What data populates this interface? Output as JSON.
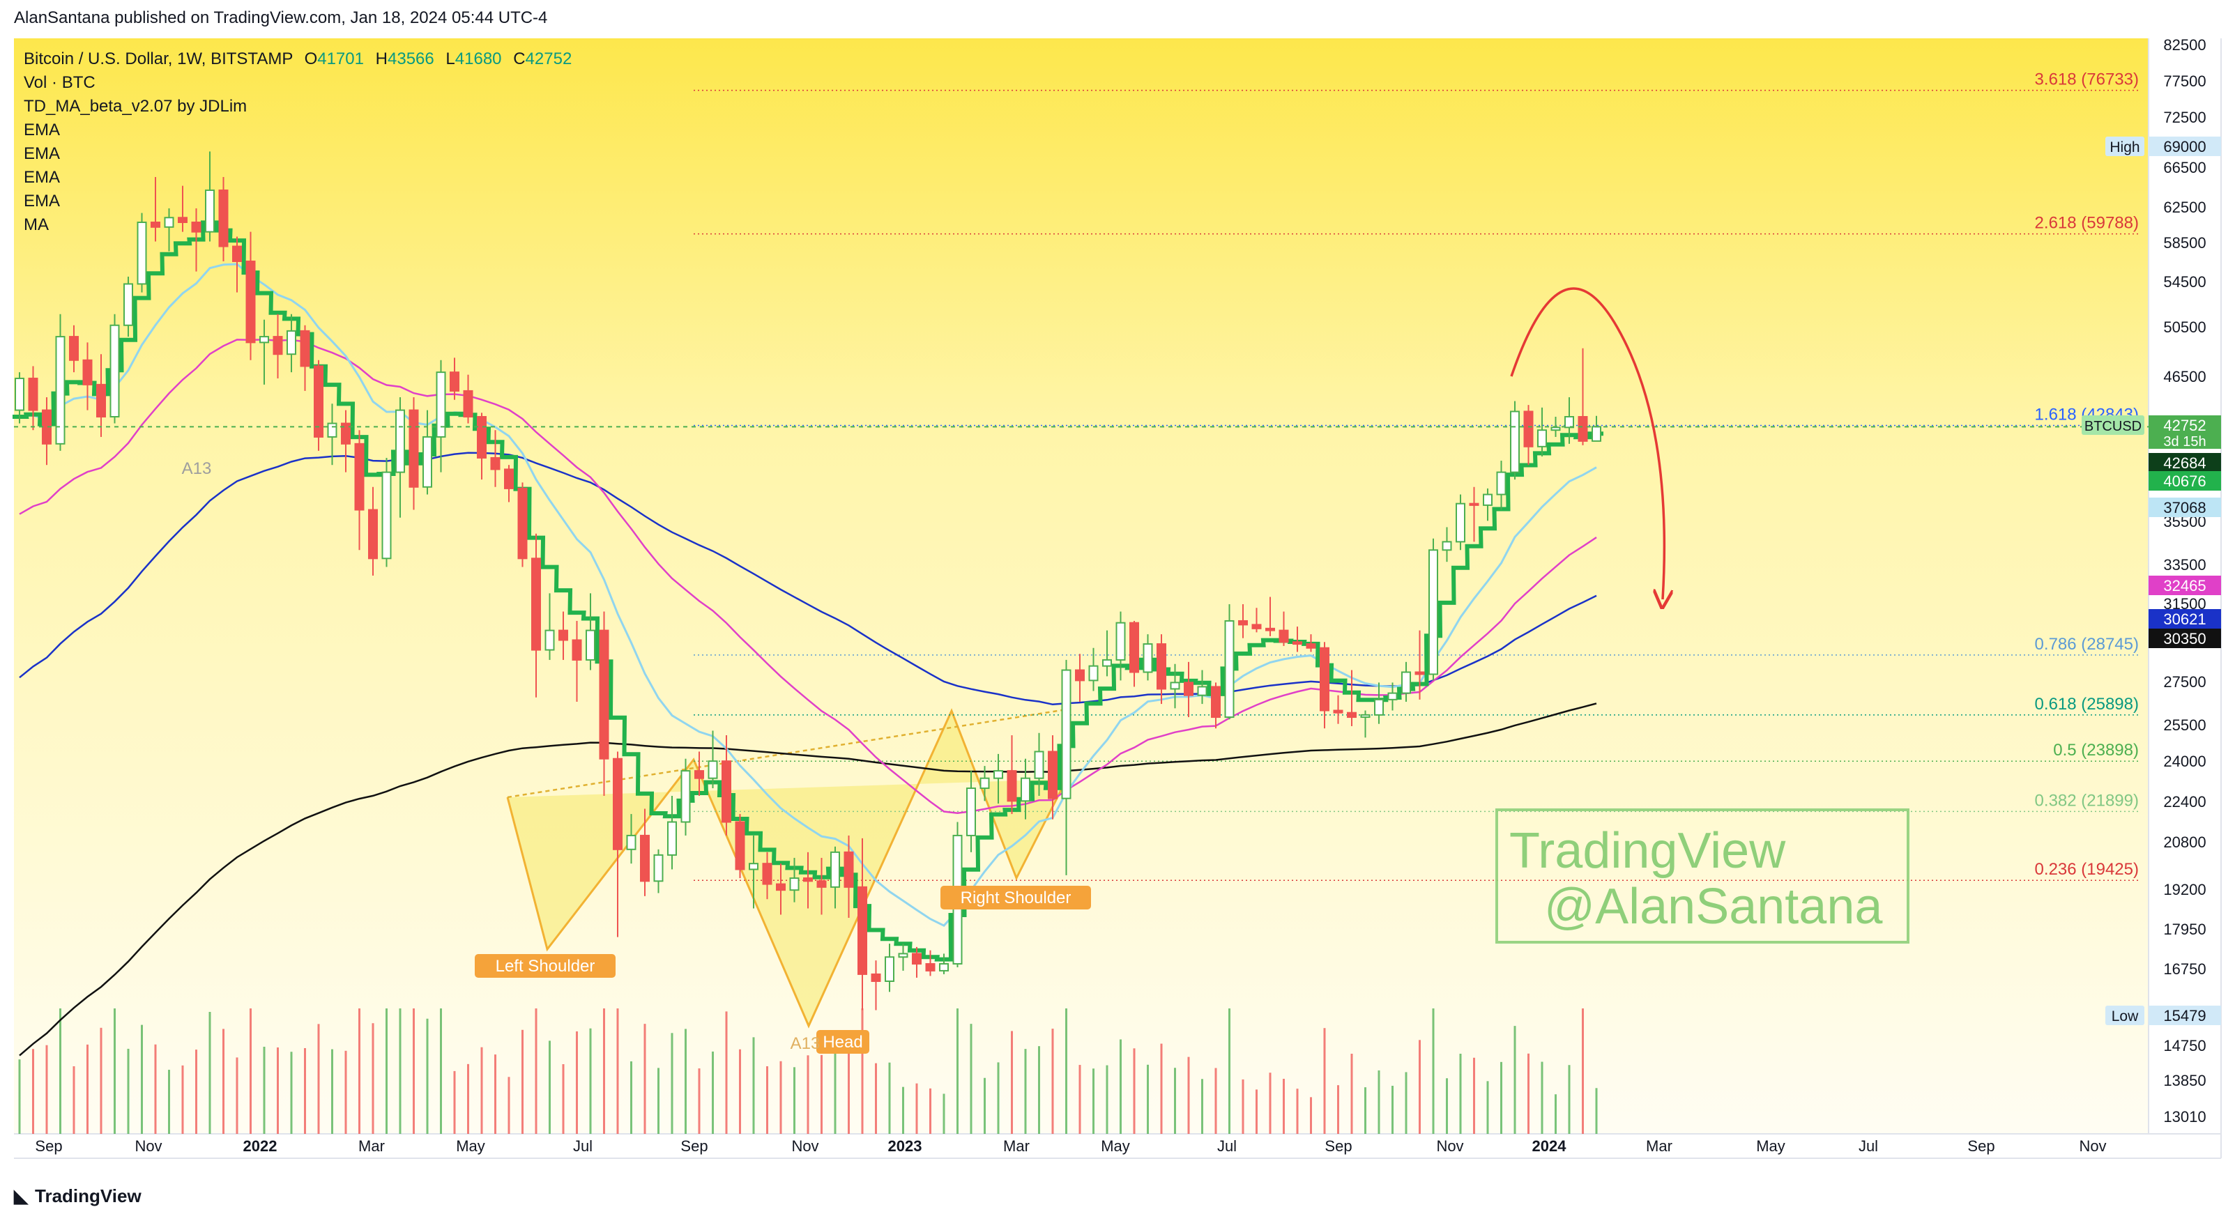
{
  "header": {
    "publisher": "AlanSantana published on TradingView.com, Jan 18, 2024 05:44 UTC-4"
  },
  "legend": {
    "symbol": "Bitcoin / U.S. Dollar, 1W, BITSTAMP",
    "o_label": "O",
    "o": "41701",
    "h_label": "H",
    "h": "43566",
    "l_label": "L",
    "l": "41680",
    "c_label": "C",
    "c": "42752",
    "lines": [
      "Vol · BTC",
      "TD_MA_beta_v2.07 by JDLim",
      "EMA",
      "EMA",
      "EMA",
      "EMA",
      "MA"
    ]
  },
  "footer": {
    "brand": "TradingView"
  },
  "watermark": {
    "line1": "TradingView",
    "line2": "@AlanSantana"
  },
  "colors": {
    "up": "#4caf50",
    "down": "#ef5350",
    "trend": "#22b24c",
    "ema_light": "#90d5ef",
    "ema_pink": "#e040c8",
    "ema_blue": "#1a32c8",
    "ma_black": "#111111",
    "fib": "#d9a900",
    "pattern": "#f5e96a",
    "label_orange": "#f5a33a"
  },
  "chart_data": {
    "type": "candlestick",
    "timeframe": "1W",
    "y_scale": "log",
    "ylim": [
      12500,
      84000
    ],
    "x_labels": [
      "Sep",
      "Nov",
      "2022",
      "Mar",
      "May",
      "Jul",
      "Sep",
      "Nov",
      "2023",
      "Mar",
      "May",
      "Jul",
      "Sep",
      "Nov",
      "2024",
      "Mar",
      "May",
      "Jul",
      "Sep",
      "Nov"
    ],
    "y_ticks": [
      "82500",
      "77500",
      "72500",
      "69000",
      "66500",
      "62500",
      "58500",
      "54500",
      "50500",
      "46500",
      "42752",
      "35500",
      "33500",
      "31500",
      "27500",
      "25500",
      "24000",
      "22400",
      "20800",
      "19200",
      "17950",
      "16750",
      "14750",
      "13850",
      "13010"
    ],
    "price_tags": [
      {
        "text": "42752",
        "sub": "3d 15h",
        "bg": "#4caf50"
      },
      {
        "text": "42684",
        "bg": "#0d3f1a"
      },
      {
        "text": "40676",
        "bg": "#22b24c"
      },
      {
        "text": "37068",
        "bg": "#bde5f5"
      },
      {
        "text": "32465",
        "bg": "#e040c8"
      },
      {
        "text": "30621",
        "bg": "#1a32c8"
      },
      {
        "text": "30350",
        "bg": "#111111"
      }
    ],
    "high_marker": {
      "label": "High",
      "value": "69000"
    },
    "low_marker": {
      "label": "Low",
      "value": "15479"
    },
    "symbol_tag": "BTCUSD",
    "fib_levels": [
      {
        "label": "3.618 (76733)",
        "value": 76733,
        "color": "#d9383a"
      },
      {
        "label": "2.618 (59788)",
        "value": 59788,
        "color": "#d9383a"
      },
      {
        "label": "1.618 (42843)",
        "value": 42843,
        "color": "#2962ff"
      },
      {
        "label": "0.786 (28745)",
        "value": 28745,
        "color": "#5b9bd5"
      },
      {
        "label": "0.618 (25898)",
        "value": 25898,
        "color": "#089981"
      },
      {
        "label": "0.5 (23898)",
        "value": 23898,
        "color": "#4caf50"
      },
      {
        "label": "0.382 (21899)",
        "value": 21899,
        "color": "#81c784"
      },
      {
        "label": "0.236 (19425)",
        "value": 19425,
        "color": "#d9383a"
      }
    ],
    "annotations": [
      "Left Shoulder",
      "Head",
      "Right Shoulder",
      "A13",
      "A13"
    ],
    "candles": [
      [
        44000,
        47000,
        43000,
        46500
      ],
      [
        46500,
        47500,
        42500,
        44000
      ],
      [
        44000,
        45000,
        40000,
        41500
      ],
      [
        41500,
        52000,
        41000,
        50000
      ],
      [
        50000,
        51000,
        47000,
        48000
      ],
      [
        48000,
        49500,
        44000,
        46000
      ],
      [
        46000,
        48500,
        42000,
        43500
      ],
      [
        43500,
        52000,
        43000,
        51000
      ],
      [
        51000,
        55500,
        50000,
        54800
      ],
      [
        54800,
        62000,
        54000,
        61000
      ],
      [
        61000,
        66000,
        59000,
        60500
      ],
      [
        60500,
        62500,
        58000,
        61500
      ],
      [
        61500,
        65000,
        60000,
        61000
      ],
      [
        61000,
        62500,
        56000,
        60000
      ],
      [
        60000,
        69000,
        59000,
        64500
      ],
      [
        64500,
        66000,
        57000,
        58500
      ],
      [
        58500,
        59500,
        54000,
        57000
      ],
      [
        57000,
        60000,
        48000,
        49500
      ],
      [
        49500,
        51500,
        46000,
        50000
      ],
      [
        50000,
        52000,
        46500,
        48500
      ],
      [
        48500,
        52000,
        47000,
        50500
      ],
      [
        50500,
        51000,
        45500,
        47500
      ],
      [
        47500,
        48000,
        41000,
        42000
      ],
      [
        42000,
        44500,
        40000,
        43000
      ],
      [
        43000,
        44000,
        39500,
        41500
      ],
      [
        41500,
        42500,
        34500,
        37000
      ],
      [
        37000,
        38500,
        33000,
        34000
      ],
      [
        34000,
        40500,
        33500,
        39500
      ],
      [
        39500,
        45000,
        36500,
        44000
      ],
      [
        44000,
        45000,
        37000,
        38500
      ],
      [
        38500,
        44000,
        38000,
        42000
      ],
      [
        42000,
        48000,
        39500,
        47000
      ],
      [
        47000,
        48200,
        44800,
        45500
      ],
      [
        45500,
        46800,
        43000,
        43500
      ],
      [
        43500,
        43800,
        39000,
        40500
      ],
      [
        40500,
        42500,
        38500,
        39700
      ],
      [
        39700,
        40000,
        37500,
        38400
      ],
      [
        38400,
        38800,
        33500,
        34000
      ],
      [
        34000,
        35500,
        26700,
        29000
      ],
      [
        29000,
        32000,
        28500,
        30000
      ],
      [
        30000,
        31000,
        28500,
        29500
      ],
      [
        29500,
        30500,
        26500,
        28500
      ],
      [
        28500,
        32000,
        28000,
        30000
      ],
      [
        30000,
        31000,
        22500,
        24000
      ],
      [
        24000,
        24300,
        17600,
        20500
      ],
      [
        20500,
        21800,
        20000,
        21000
      ],
      [
        21000,
        22000,
        18900,
        19400
      ],
      [
        19400,
        20500,
        19000,
        20300
      ],
      [
        20300,
        22500,
        19800,
        21500
      ],
      [
        21500,
        24000,
        21000,
        23500
      ],
      [
        23500,
        24300,
        22500,
        23200
      ],
      [
        23200,
        25200,
        22800,
        23900
      ],
      [
        23900,
        25000,
        21000,
        21500
      ],
      [
        21500,
        21800,
        19500,
        19800
      ],
      [
        19800,
        21000,
        18500,
        20000
      ],
      [
        20000,
        20400,
        18800,
        19300
      ],
      [
        19300,
        20000,
        18300,
        19100
      ],
      [
        19100,
        20200,
        18700,
        19500
      ],
      [
        19500,
        20400,
        18500,
        19400
      ],
      [
        19400,
        20200,
        18300,
        19200
      ],
      [
        19200,
        20600,
        18500,
        20400
      ],
      [
        20400,
        21000,
        18200,
        19200
      ],
      [
        19200,
        20900,
        15500,
        16500
      ],
      [
        16500,
        16900,
        15500,
        16300
      ],
      [
        16300,
        17400,
        16000,
        17000
      ],
      [
        17000,
        17400,
        16600,
        17100
      ],
      [
        17100,
        17300,
        16400,
        16800
      ],
      [
        16800,
        17200,
        16450,
        16600
      ],
      [
        16600,
        17100,
        16500,
        16800
      ],
      [
        16800,
        21500,
        16700,
        21000
      ],
      [
        21000,
        23500,
        20400,
        22800
      ],
      [
        22800,
        23700,
        22300,
        23200
      ],
      [
        23200,
        24200,
        22200,
        23500
      ],
      [
        23500,
        25000,
        21800,
        22300
      ],
      [
        22300,
        24000,
        21600,
        23200
      ],
      [
        23200,
        25100,
        22500,
        24300
      ],
      [
        24300,
        25000,
        21600,
        22400
      ],
      [
        22400,
        28500,
        19600,
        28000
      ],
      [
        28000,
        28800,
        26500,
        27500
      ],
      [
        27500,
        29100,
        27000,
        28200
      ],
      [
        28200,
        30000,
        27700,
        28500
      ],
      [
        28500,
        31000,
        27500,
        30400
      ],
      [
        30400,
        30500,
        27200,
        27900
      ],
      [
        27900,
        29800,
        27500,
        29300
      ],
      [
        29300,
        29800,
        26400,
        27100
      ],
      [
        27100,
        28300,
        26200,
        27400
      ],
      [
        27400,
        28400,
        25800,
        26800
      ],
      [
        26800,
        28000,
        26400,
        27200
      ],
      [
        27200,
        27400,
        25300,
        25800
      ],
      [
        25800,
        31400,
        25700,
        30500
      ],
      [
        30500,
        31400,
        29600,
        30300
      ],
      [
        30300,
        31200,
        29900,
        30100
      ],
      [
        30100,
        31800,
        29700,
        30000
      ],
      [
        30000,
        31000,
        29200,
        29400
      ],
      [
        29400,
        30200,
        28900,
        29300
      ],
      [
        29300,
        29800,
        28900,
        29100
      ],
      [
        29100,
        29400,
        25300,
        26100
      ],
      [
        26100,
        26800,
        25500,
        26000
      ],
      [
        26000,
        28000,
        25400,
        25800
      ],
      [
        25800,
        26100,
        24900,
        25900
      ],
      [
        25900,
        27400,
        25500,
        26600
      ],
      [
        26600,
        27400,
        26100,
        26900
      ],
      [
        26900,
        28400,
        26500,
        27900
      ],
      [
        27900,
        30000,
        26600,
        27800
      ],
      [
        27800,
        35200,
        27500,
        34500
      ],
      [
        34500,
        35900,
        33800,
        35000
      ],
      [
        35000,
        38000,
        34500,
        37400
      ],
      [
        37400,
        38500,
        35000,
        37300
      ],
      [
        37300,
        38400,
        36300,
        38000
      ],
      [
        38000,
        40300,
        37000,
        39500
      ],
      [
        39500,
        44700,
        39000,
        43900
      ],
      [
        43900,
        44400,
        40000,
        41300
      ],
      [
        41300,
        44200,
        40600,
        42500
      ],
      [
        42500,
        43500,
        42000,
        42700
      ],
      [
        42700,
        45000,
        41500,
        43500
      ],
      [
        43500,
        49000,
        41400,
        41700
      ],
      [
        41700,
        43566,
        41680,
        42752
      ]
    ]
  }
}
